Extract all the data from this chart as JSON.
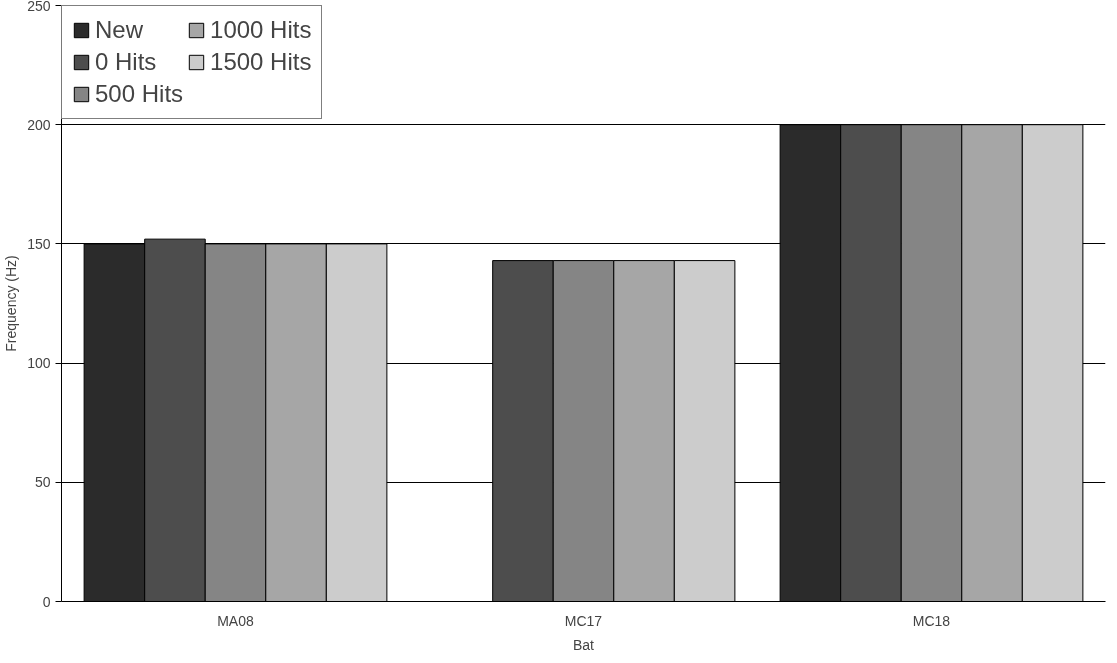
{
  "chart_data": {
    "type": "bar",
    "xlabel": "Bat",
    "ylabel": "Frequency (Hz)",
    "categories": [
      "MA08",
      "MC17",
      "MC18"
    ],
    "series": [
      {
        "name": "New",
        "color": "#2b2b2b",
        "values": [
          150,
          null,
          200
        ]
      },
      {
        "name": "0 Hits",
        "color": "#4d4d4d",
        "values": [
          152,
          143,
          200
        ]
      },
      {
        "name": "500 Hits",
        "color": "#858585",
        "values": [
          150,
          143,
          200
        ]
      },
      {
        "name": "1000 Hits",
        "color": "#a6a6a6",
        "values": [
          150,
          143,
          200
        ]
      },
      {
        "name": "1500 Hits",
        "color": "#cccccc",
        "values": [
          150,
          143,
          200
        ]
      }
    ],
    "ylim": [
      0,
      250
    ],
    "yticks": [
      0,
      50,
      100,
      150,
      200,
      250
    ],
    "grid": "y",
    "legend": "top left"
  }
}
